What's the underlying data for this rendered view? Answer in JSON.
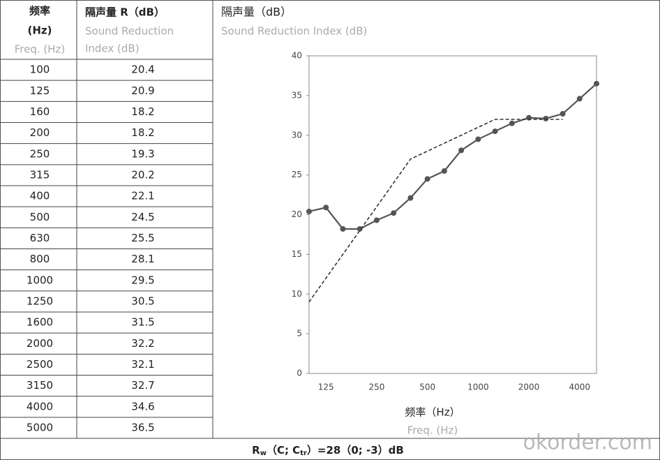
{
  "table": {
    "header": [
      [
        "频率",
        "(Hz)",
        "Freq. (Hz)"
      ],
      [
        "隔声量 R（dB）",
        "Sound Reduction",
        "Index (dB)"
      ]
    ],
    "rows": [
      [
        "100",
        "20.4"
      ],
      [
        "125",
        "20.9"
      ],
      [
        "160",
        "18.2"
      ],
      [
        "200",
        "18.2"
      ],
      [
        "250",
        "19.3"
      ],
      [
        "315",
        "20.2"
      ],
      [
        "400",
        "22.1"
      ],
      [
        "500",
        "24.5"
      ],
      [
        "630",
        "25.5"
      ],
      [
        "800",
        "28.1"
      ],
      [
        "1000",
        "29.5"
      ],
      [
        "1250",
        "30.5"
      ],
      [
        "1600",
        "31.5"
      ],
      [
        "2000",
        "32.2"
      ],
      [
        "2500",
        "32.1"
      ],
      [
        "3150",
        "32.7"
      ],
      [
        "4000",
        "34.6"
      ],
      [
        "5000",
        "36.5"
      ]
    ]
  },
  "chart_data": {
    "type": "line",
    "title": "隔声量（dB）",
    "subtitle": "Sound Reduction Index (dB)",
    "x_label": "频率（Hz）",
    "x_label_en": "Freq. (Hz)",
    "categories": [
      null,
      "125",
      null,
      null,
      "250",
      null,
      null,
      "500",
      null,
      null,
      "1000",
      null,
      null,
      "2000",
      null,
      null,
      "4000",
      null
    ],
    "series": [
      {
        "color": "#555555",
        "style": "solid",
        "values": [
          20.4,
          20.9,
          18.2,
          18.2,
          19.3,
          20.2,
          22.1,
          24.5,
          25.5,
          28.1,
          29.5,
          30.5,
          31.5,
          32.2,
          32.1,
          32.7,
          34.6,
          36.5
        ]
      },
      {
        "color": "#333333",
        "style": "dashed",
        "values": [
          9,
          12,
          15,
          18,
          21,
          24,
          27,
          28,
          29,
          30,
          31,
          32,
          32,
          32,
          32,
          32,
          null,
          null
        ]
      }
    ],
    "ylim": [
      0,
      40
    ],
    "yticks": [
      0,
      5,
      10,
      15,
      20,
      25,
      30,
      35,
      40
    ],
    "grid": false
  },
  "footer": [
    "R",
    "w",
    "（C; C",
    "tr",
    "）=28（0; -3）dB"
  ],
  "watermark": "okorder.com"
}
